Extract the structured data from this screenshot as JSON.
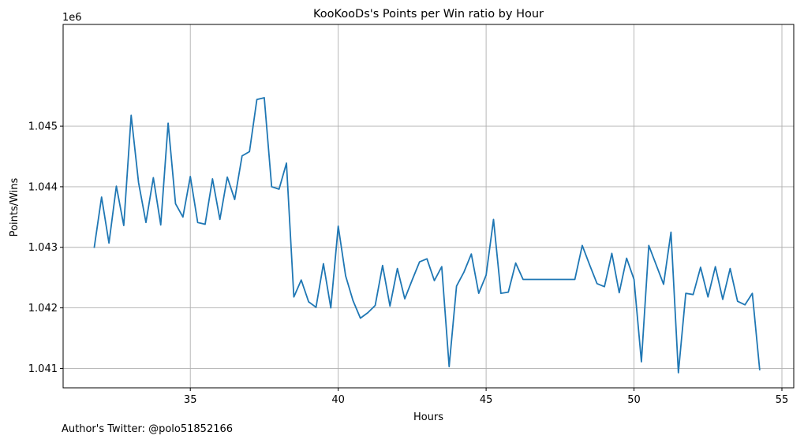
{
  "footer_text": "Author's Twitter: @polo51852166",
  "colors": {
    "line": "#1f77b4",
    "grid": "#b0b0b0",
    "axes": "#000000",
    "background": "#ffffff"
  },
  "chart_data": {
    "type": "line",
    "title": "KooKooDs's Points per Win ratio by Hour",
    "xlabel": "Hours",
    "ylabel": "Points/Wins",
    "y_offset_text": "1e6",
    "xlim": [
      30.7,
      55.4
    ],
    "ylim": [
      1.04068,
      1.04668
    ],
    "x_ticks": [
      35,
      40,
      45,
      50,
      55
    ],
    "x_tick_labels": [
      "35",
      "40",
      "45",
      "50",
      "55"
    ],
    "y_ticks": [
      1.041,
      1.042,
      1.043,
      1.044,
      1.045
    ],
    "y_tick_labels": [
      "1.041",
      "1.042",
      "1.043",
      "1.044",
      "1.045"
    ],
    "grid": true,
    "series": [
      {
        "color": "#1f77b4",
        "x": [
          31.75,
          32.0,
          32.25,
          32.5,
          32.75,
          33.0,
          33.25,
          33.5,
          33.75,
          34.0,
          34.25,
          34.5,
          34.75,
          35.0,
          35.25,
          35.5,
          35.75,
          36.0,
          36.25,
          36.5,
          36.75,
          37.0,
          37.25,
          37.5,
          37.75,
          38.0,
          38.25,
          38.5,
          38.75,
          39.0,
          39.25,
          39.5,
          39.75,
          40.0,
          40.25,
          40.5,
          40.75,
          41.0,
          41.25,
          41.5,
          41.75,
          42.0,
          42.25,
          42.5,
          42.75,
          43.0,
          43.25,
          43.5,
          43.75,
          44.0,
          44.25,
          44.5,
          44.75,
          45.0,
          45.25,
          45.5,
          45.75,
          46.0,
          46.25,
          46.5,
          46.75,
          47.0,
          47.25,
          47.5,
          47.75,
          48.0,
          48.25,
          48.5,
          48.75,
          49.0,
          49.25,
          49.5,
          49.75,
          50.0,
          50.25,
          50.5,
          50.75,
          51.0,
          51.25,
          51.5,
          51.75,
          52.0,
          52.25,
          52.5,
          52.75,
          53.0,
          53.25,
          53.5,
          53.75,
          54.0,
          54.25
        ],
        "values": [
          1.04299,
          1.04383,
          1.04307,
          1.04401,
          1.04336,
          1.04518,
          1.04407,
          1.04341,
          1.04415,
          1.04337,
          1.04505,
          1.04372,
          1.0435,
          1.04417,
          1.04341,
          1.04338,
          1.04413,
          1.04346,
          1.04416,
          1.04379,
          1.04451,
          1.04458,
          1.04544,
          1.04547,
          1.044,
          1.04396,
          1.04439,
          1.04218,
          1.04246,
          1.0421,
          1.04201,
          1.04273,
          1.042,
          1.04335,
          1.04253,
          1.04212,
          1.04183,
          1.04192,
          1.04204,
          1.0427,
          1.04203,
          1.04265,
          1.04215,
          1.04246,
          1.04276,
          1.04281,
          1.04245,
          1.04268,
          1.04103,
          1.04236,
          1.04259,
          1.04289,
          1.04224,
          1.04254,
          1.04346,
          1.04224,
          1.04226,
          1.04274,
          1.04247,
          1.04247,
          1.04247,
          1.04247,
          1.04247,
          1.04247,
          1.04247,
          1.04247,
          1.04303,
          1.04271,
          1.0424,
          1.04235,
          1.0429,
          1.04225,
          1.04282,
          1.04247,
          1.04111,
          1.04303,
          1.04271,
          1.04239,
          1.04325,
          1.04093,
          1.04224,
          1.04222,
          1.04267,
          1.04218,
          1.04268,
          1.04214,
          1.04265,
          1.04211,
          1.04205,
          1.04224,
          1.04097
        ]
      }
    ]
  }
}
